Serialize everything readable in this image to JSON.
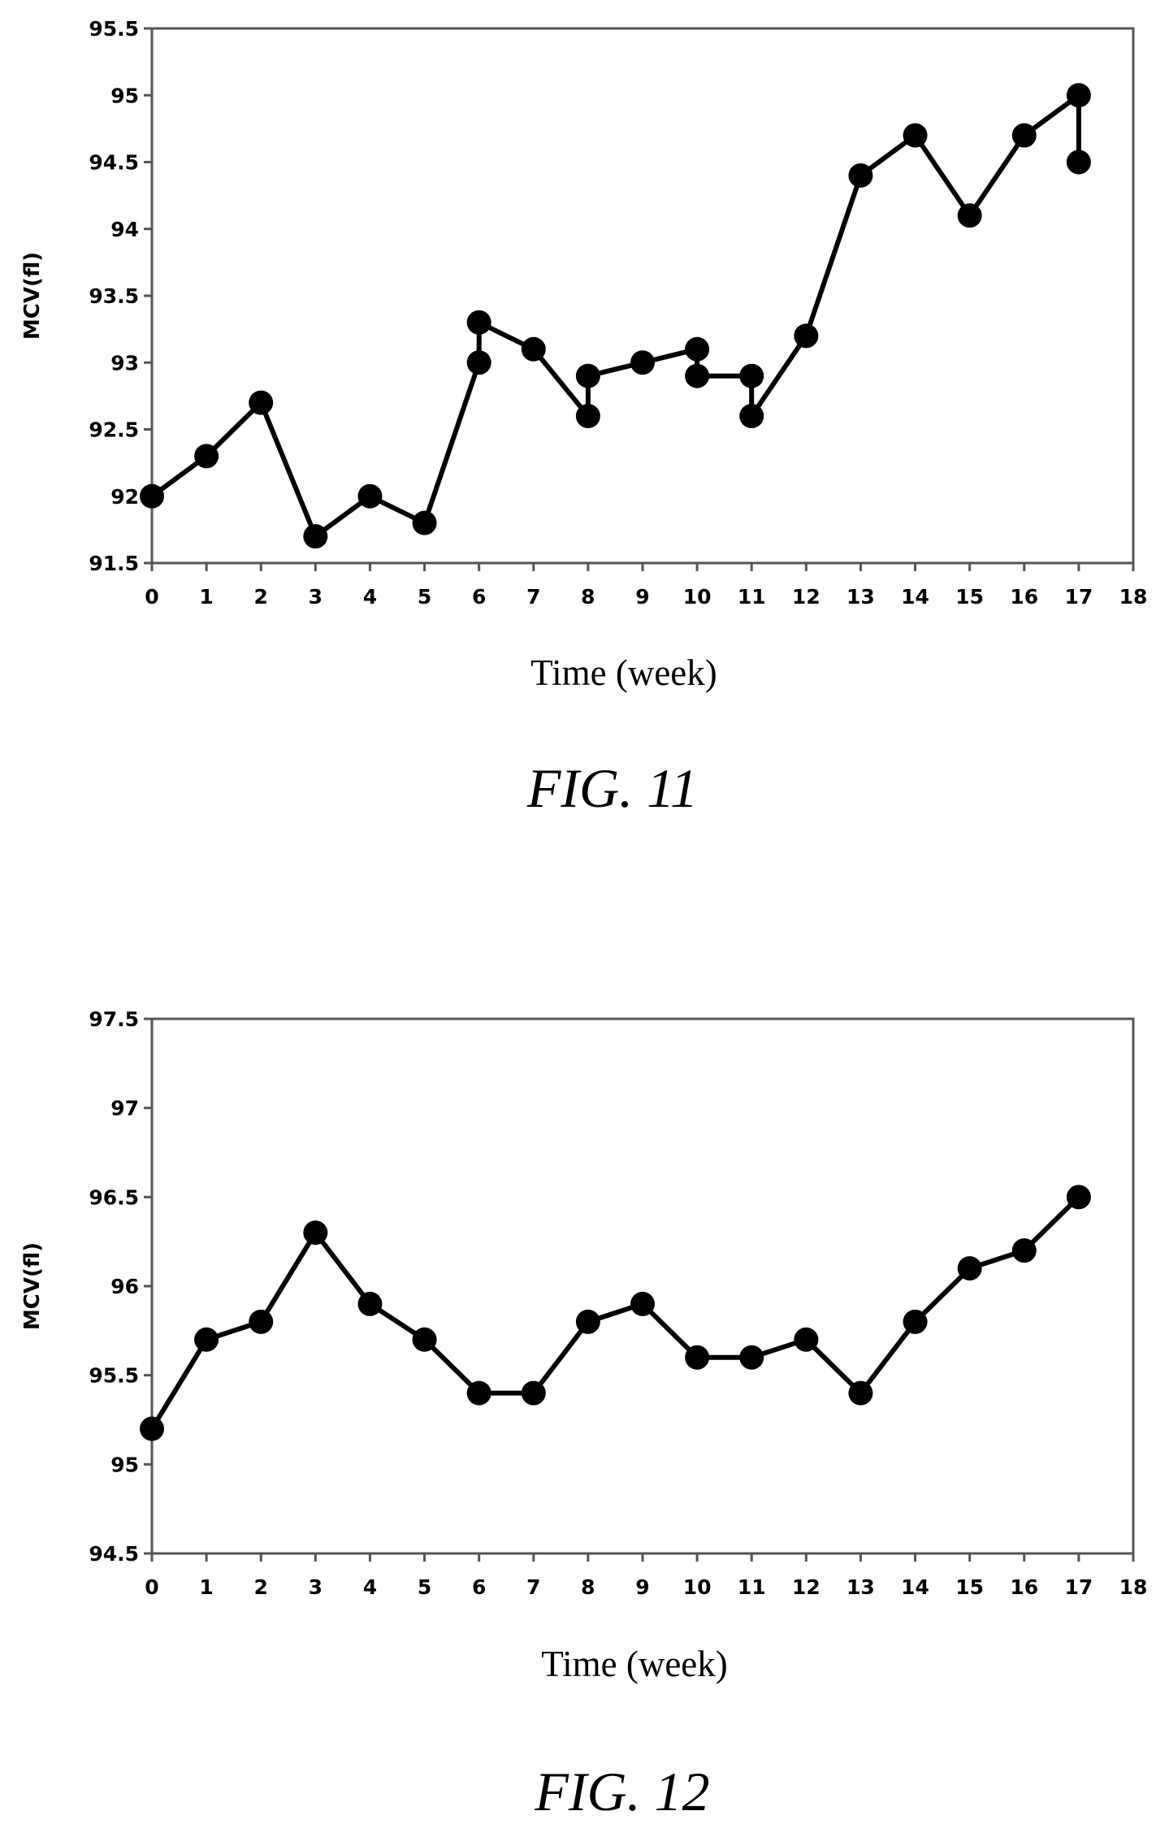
{
  "chart_data": [
    {
      "type": "line",
      "caption": "FIG. 11",
      "xlabel": "Time (week)",
      "ylabel": "MCV(fl)",
      "xlim": [
        0,
        18
      ],
      "ylim": [
        91.5,
        95.5
      ],
      "xticks": [
        "0",
        "1",
        "2",
        "3",
        "4",
        "5",
        "6",
        "7",
        "8",
        "9",
        "10",
        "11",
        "12",
        "13",
        "14",
        "15",
        "16",
        "17",
        "18"
      ],
      "yticks": [
        "91.5",
        "92",
        "92.5",
        "93",
        "93.5",
        "94",
        "94.5",
        "95",
        "95.5"
      ],
      "grid": false,
      "color": "#000000",
      "series": [
        {
          "points": [
            [
              0,
              92.0
            ],
            [
              1,
              92.3
            ],
            [
              2,
              92.7
            ],
            [
              3,
              91.7
            ],
            [
              4,
              92.0
            ],
            [
              5,
              91.8
            ],
            [
              6,
              93.0
            ],
            [
              6,
              93.3
            ],
            [
              7,
              93.1
            ],
            [
              8,
              92.6
            ],
            [
              8,
              92.9
            ],
            [
              9,
              93.0
            ],
            [
              10,
              93.1
            ],
            [
              10,
              92.9
            ],
            [
              11,
              92.9
            ],
            [
              11,
              92.6
            ],
            [
              12,
              93.2
            ],
            [
              13,
              94.4
            ],
            [
              14,
              94.7
            ],
            [
              15,
              94.1
            ],
            [
              16,
              94.7
            ],
            [
              17,
              95.0
            ],
            [
              17,
              94.5
            ]
          ]
        }
      ]
    },
    {
      "type": "line",
      "caption": "FIG. 12",
      "xlabel": "Time (week)",
      "ylabel": "MCV(fl)",
      "xlim": [
        0,
        18
      ],
      "ylim": [
        94.5,
        97.5
      ],
      "xticks": [
        "0",
        "1",
        "2",
        "3",
        "4",
        "5",
        "6",
        "7",
        "8",
        "9",
        "10",
        "11",
        "12",
        "13",
        "14",
        "15",
        "16",
        "17",
        "18"
      ],
      "yticks": [
        "94.5",
        "95",
        "95.5",
        "96",
        "96.5",
        "97",
        "97.5"
      ],
      "grid": false,
      "color": "#000000",
      "series": [
        {
          "points": [
            [
              0,
              95.2
            ],
            [
              1,
              95.7
            ],
            [
              2,
              95.8
            ],
            [
              3,
              96.3
            ],
            [
              4,
              95.9
            ],
            [
              5,
              95.7
            ],
            [
              6,
              95.4
            ],
            [
              7,
              95.4
            ],
            [
              8,
              95.8
            ],
            [
              9,
              95.9
            ],
            [
              10,
              95.6
            ],
            [
              11,
              95.6
            ],
            [
              12,
              95.7
            ],
            [
              13,
              95.4
            ],
            [
              14,
              95.8
            ],
            [
              15,
              96.1
            ],
            [
              16,
              96.2
            ],
            [
              17,
              96.5
            ]
          ]
        }
      ]
    }
  ]
}
